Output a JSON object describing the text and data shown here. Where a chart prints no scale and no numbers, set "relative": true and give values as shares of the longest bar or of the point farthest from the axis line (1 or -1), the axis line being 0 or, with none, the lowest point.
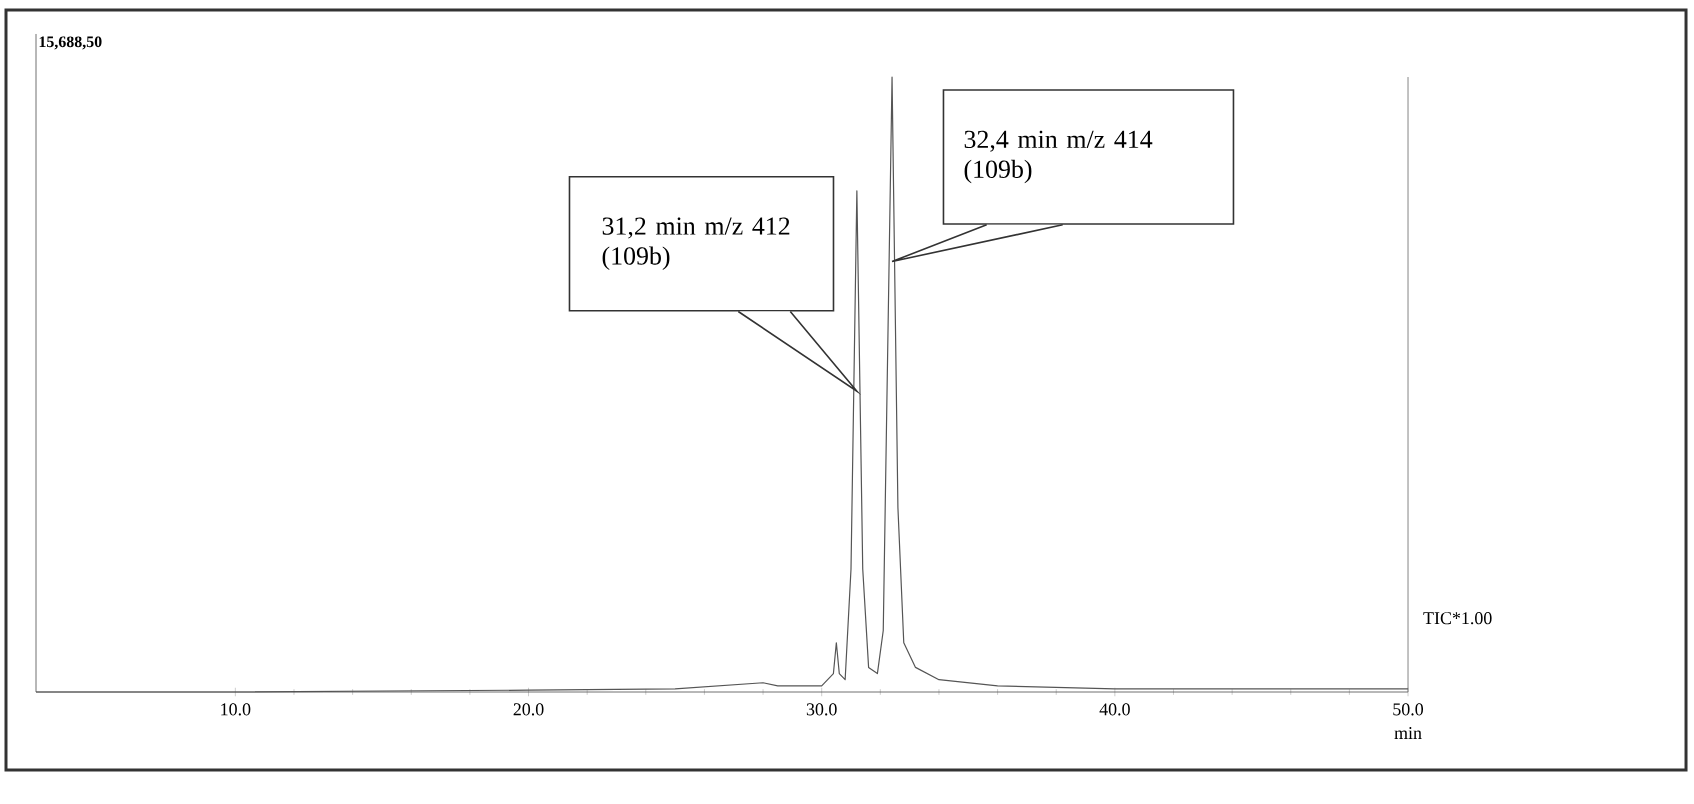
{
  "chart_data": {
    "type": "line",
    "relative": true,
    "color": "#555555",
    "xlabel": "min",
    "x": [
      3.2,
      10,
      20,
      25,
      28,
      28.5,
      30,
      30.4,
      30.5,
      30.6,
      30.8,
      31.0,
      31.2,
      31.4,
      31.6,
      31.9,
      32.1,
      32.4,
      32.6,
      32.8,
      33.2,
      34,
      36,
      40,
      43,
      50
    ],
    "values": [
      0,
      0,
      0.003,
      0.005,
      0.015,
      0.01,
      0.01,
      0.03,
      0.08,
      0.03,
      0.02,
      0.2,
      0.815,
      0.2,
      0.04,
      0.03,
      0.1,
      1,
      0.3,
      0.08,
      0.04,
      0.02,
      0.01,
      0.005,
      0.005,
      0.005
    ],
    "xlim": [
      3.2,
      50
    ],
    "xticks": [
      {
        "value": 10,
        "label": "10.0"
      },
      {
        "value": 20,
        "label": "20.0"
      },
      {
        "value": 30,
        "label": "30.0"
      },
      {
        "value": 40,
        "label": "40.0"
      },
      {
        "value": 50,
        "label": "50.0"
      }
    ],
    "annotations": [
      "15,688,50",
      "31,2 min m/z 412 (109b)",
      "32,4 min m/z 414 (109b)",
      "TIC*1.00"
    ]
  }
}
